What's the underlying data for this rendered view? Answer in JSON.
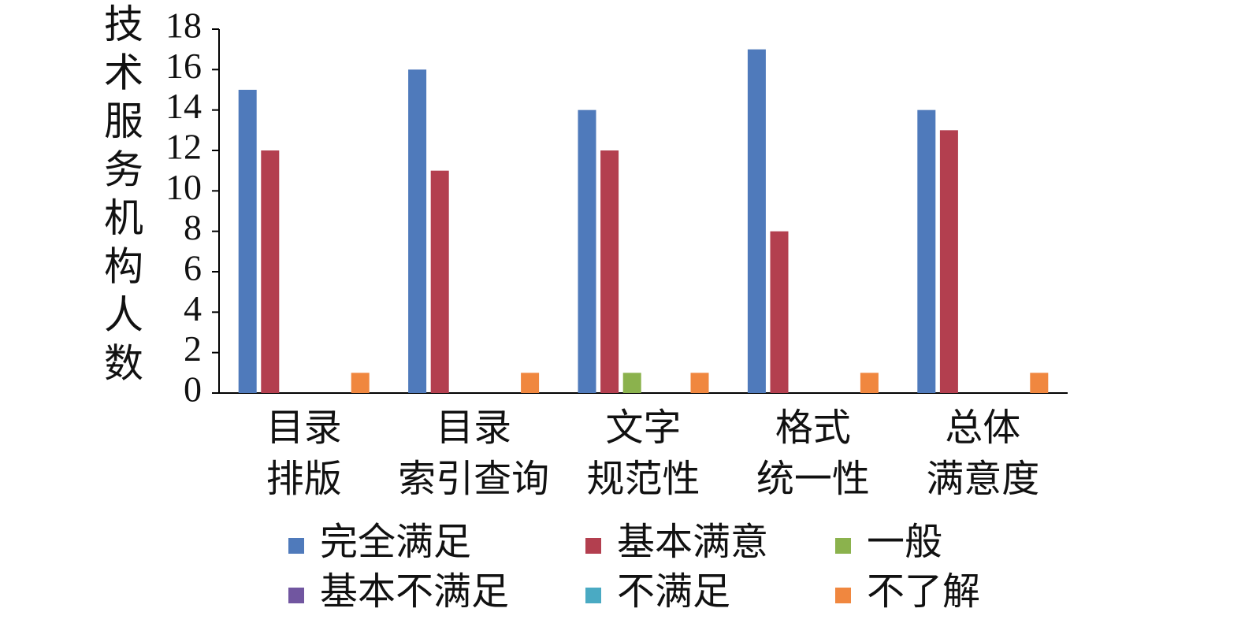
{
  "chart_data": {
    "type": "bar",
    "y_label": "技术服务机构人数",
    "categories": [
      "目录\n排版",
      "目录\n索引查询",
      "文字\n规范性",
      "格式\n统一性",
      "总体\n满意度"
    ],
    "series": [
      {
        "name": "完全满足",
        "color": "#4f7abb",
        "values": [
          15,
          16,
          14,
          17,
          14
        ]
      },
      {
        "name": "基本满意",
        "color": "#b33f4f",
        "values": [
          12,
          11,
          12,
          8,
          13
        ]
      },
      {
        "name": "一般",
        "color": "#8bb24d",
        "values": [
          0,
          0,
          1,
          0,
          0
        ]
      },
      {
        "name": "基本不满足",
        "color": "#7156a0",
        "values": [
          0,
          0,
          0,
          0,
          0
        ]
      },
      {
        "name": "不满足",
        "color": "#4aaac3",
        "values": [
          0,
          0,
          0,
          0,
          0
        ]
      },
      {
        "name": "不了解",
        "color": "#f0873f",
        "values": [
          1,
          1,
          1,
          1,
          1
        ]
      }
    ],
    "ylim": [
      0,
      18
    ],
    "yticks": [
      0,
      2,
      4,
      6,
      8,
      10,
      12,
      14,
      16,
      18
    ],
    "grid": false
  }
}
